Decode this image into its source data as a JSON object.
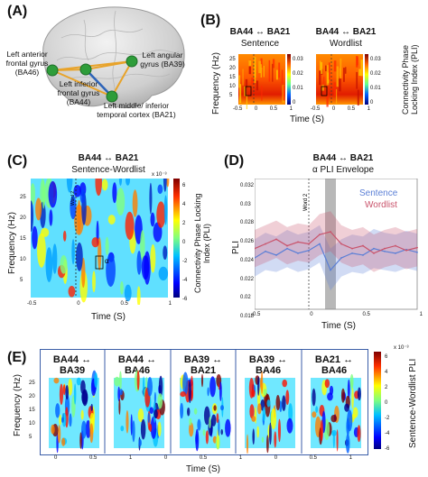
{
  "panels": {
    "a": {
      "label": "(A)",
      "regions": [
        "Left anterior frontal gyrus (BA46)",
        "Left inferior frontal gyrus (BA44)",
        "Left angular gyrus (BA39)",
        "Left middle/ inferior temporal cortex (BA21)"
      ]
    },
    "b": {
      "label": "(B)",
      "left_title": "BA44 ↔ BA21",
      "left_sub": "Sentence",
      "right_title": "BA44 ↔ BA21",
      "right_sub": "Wordlist",
      "ylabel": "Frequency (Hz)",
      "xlabel": "Time (S)",
      "cbar_label": "Connectivity Phase Locking Index (PLI)",
      "cbar_ticks_left": [
        "0.03",
        "0.02",
        "0.01",
        "0"
      ],
      "cbar_ticks_right": [
        "0.03",
        "0.02",
        "0.01",
        "0"
      ],
      "word_marker": "Word 2",
      "alpha": "α",
      "yticks": [
        "25",
        "20",
        "15",
        "10",
        "5"
      ],
      "xticks": [
        "-0.5",
        "0",
        "0.5",
        "1"
      ]
    },
    "c": {
      "label": "(C)",
      "title": "BA44 ↔ BA21",
      "sub": "Sentence-Wordlist",
      "ylabel": "Frequency (Hz)",
      "xlabel": "Time (S)",
      "cbar_label": "Connectivity Phase Locking Index (PLI)",
      "cbar_exp": "x 10⁻³",
      "cbar_ticks": [
        "6",
        "4",
        "2",
        "0",
        "-2",
        "-4",
        "-6"
      ],
      "word_marker": "Word 2",
      "alpha": "α",
      "yticks": [
        "25",
        "20",
        "15",
        "10",
        "5"
      ],
      "xticks": [
        "-0.5",
        "0",
        "0.5",
        "1"
      ]
    },
    "d": {
      "label": "(D)",
      "title": "BA44 ↔ BA21",
      "sub": "α PLI Envelope",
      "ylabel": "PLI",
      "xlabel": "Time (S)",
      "yticks": [
        "0.032",
        "0.03",
        "0.028",
        "0.026",
        "0.024",
        "0.022",
        "0.02",
        "0.018"
      ],
      "xticks": [
        "-0.5",
        "0",
        "0.5",
        "1"
      ],
      "word_marker": "Word 2",
      "legend": [
        "Sentence",
        "Wordlist"
      ]
    },
    "e": {
      "label": "(E)",
      "pairs": [
        {
          "top": "BA44 ↔",
          "bottom": "BA39"
        },
        {
          "top": "BA44 ↔",
          "bottom": "BA46"
        },
        {
          "top": "BA39 ↔",
          "bottom": "BA21"
        },
        {
          "top": "BA39 ↔",
          "bottom": "BA46"
        },
        {
          "top": "BA21 ↔",
          "bottom": "BA46"
        }
      ],
      "ylabel": "Frequency (Hz)",
      "xlabel": "Time (S)",
      "cbar_label": "Sentence-Wordlist PLI",
      "cbar_exp": "x 10⁻³",
      "cbar_ticks": [
        "6",
        "4",
        "2",
        "0",
        "-2",
        "-4",
        "-6"
      ],
      "yticks": [
        "25",
        "20",
        "15",
        "10",
        "5"
      ],
      "xticks": [
        "0",
        "0.5",
        "1"
      ]
    }
  },
  "chart_data": [
    {
      "type": "line",
      "title": "BA44 ↔ BA21",
      "subtitle": "α PLI Envelope",
      "xlabel": "Time (S)",
      "ylabel": "PLI",
      "xlim": [
        -0.5,
        1
      ],
      "ylim": [
        0.018,
        0.032
      ],
      "legend_position": "top-right",
      "x": [
        -0.5,
        -0.4,
        -0.3,
        -0.2,
        -0.1,
        0,
        0.1,
        0.2,
        0.3,
        0.4,
        0.5,
        0.6,
        0.7,
        0.8,
        0.9,
        1
      ],
      "series": [
        {
          "name": "Sentence",
          "color": "#5b7fd6",
          "values": [
            0.0235,
            0.0242,
            0.0238,
            0.0245,
            0.024,
            0.0243,
            0.025,
            0.0222,
            0.0235,
            0.024,
            0.0238,
            0.0245,
            0.0242,
            0.024,
            0.0244,
            0.0241
          ],
          "band_low": [
            0.0215,
            0.0222,
            0.022,
            0.0225,
            0.022,
            0.0223,
            0.023,
            0.02,
            0.0215,
            0.022,
            0.0218,
            0.0224,
            0.0222,
            0.022,
            0.0224,
            0.0221
          ],
          "band_high": [
            0.0255,
            0.0262,
            0.0258,
            0.0265,
            0.026,
            0.0263,
            0.027,
            0.0245,
            0.0255,
            0.026,
            0.0258,
            0.0266,
            0.0262,
            0.026,
            0.0264,
            0.0261
          ]
        },
        {
          "name": "Wordlist",
          "color": "#c9536b",
          "values": [
            0.0245,
            0.025,
            0.0255,
            0.0248,
            0.0252,
            0.025,
            0.026,
            0.0263,
            0.025,
            0.0245,
            0.0248,
            0.024,
            0.0245,
            0.0248,
            0.0243,
            0.0246
          ],
          "band_low": [
            0.0225,
            0.023,
            0.0235,
            0.0228,
            0.0232,
            0.023,
            0.0238,
            0.0242,
            0.023,
            0.0225,
            0.0228,
            0.022,
            0.0225,
            0.0228,
            0.0223,
            0.0226
          ],
          "band_high": [
            0.0265,
            0.027,
            0.0275,
            0.0268,
            0.0272,
            0.027,
            0.0282,
            0.0285,
            0.027,
            0.0265,
            0.0268,
            0.026,
            0.0265,
            0.0268,
            0.0263,
            0.0266
          ]
        }
      ],
      "highlight_x_range": [
        0.15,
        0.25
      ],
      "marker_x": 0
    },
    {
      "type": "heatmap",
      "title": "BA44 ↔ BA21",
      "subtitle": "Sentence",
      "xlabel": "Time (S)",
      "ylabel": "Frequency (Hz)",
      "xlim": [
        -0.5,
        1
      ],
      "ylim": [
        3,
        30
      ],
      "clim": [
        0,
        0.03
      ]
    },
    {
      "type": "heatmap",
      "title": "BA44 ↔ BA21",
      "subtitle": "Wordlist",
      "xlabel": "Time (S)",
      "ylabel": "Frequency (Hz)",
      "xlim": [
        -0.5,
        1
      ],
      "ylim": [
        3,
        30
      ],
      "clim": [
        0,
        0.03
      ]
    },
    {
      "type": "heatmap",
      "title": "BA44 ↔ BA21",
      "subtitle": "Sentence-Wordlist",
      "xlabel": "Time (S)",
      "ylabel": "Frequency (Hz)",
      "xlim": [
        -0.5,
        1
      ],
      "ylim": [
        3,
        30
      ],
      "clim": [
        -6,
        6
      ]
    }
  ],
  "colors": {
    "jet": [
      "#00007f",
      "#0000ff",
      "#007fff",
      "#00ffff",
      "#7fff7f",
      "#ffff00",
      "#ff7f00",
      "#ff0000",
      "#7f0000"
    ],
    "hot": [
      "#8b0000",
      "#ff0000",
      "#ff7f00",
      "#ffd000"
    ],
    "edge": "#e8a32a",
    "node": "#2e9d3a",
    "blue_link": "#2e64b8",
    "frame": "#3b5ea8"
  }
}
